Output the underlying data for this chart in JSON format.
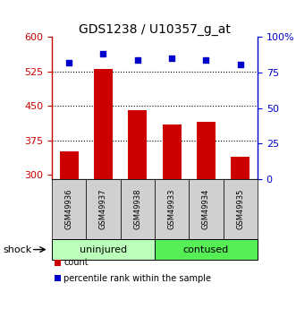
{
  "title": "GDS1238 / U10357_g_at",
  "categories": [
    "GSM49936",
    "GSM49937",
    "GSM49938",
    "GSM49933",
    "GSM49934",
    "GSM49935"
  ],
  "bar_values": [
    350,
    530,
    440,
    410,
    415,
    340
  ],
  "percentile_values": [
    82,
    88,
    84,
    85,
    84,
    81
  ],
  "bar_color": "#cc0000",
  "dot_color": "#0000cc",
  "ylim_left": [
    290,
    600
  ],
  "ylim_right": [
    0,
    100
  ],
  "yticks_left": [
    300,
    375,
    450,
    525,
    600
  ],
  "yticks_right": [
    0,
    25,
    50,
    75,
    100
  ],
  "ytick_labels_right": [
    "0",
    "25",
    "50",
    "75",
    "100%"
  ],
  "hlines": [
    375,
    450,
    525
  ],
  "group_labels": [
    "uninjured",
    "contused"
  ],
  "group_colors": [
    "#bbffbb",
    "#55ee55"
  ],
  "group_ranges": [
    [
      0,
      3
    ],
    [
      3,
      6
    ]
  ],
  "shock_label": "shock",
  "legend_items": [
    {
      "label": "count",
      "color": "#cc0000"
    },
    {
      "label": "percentile rank within the sample",
      "color": "#0000cc"
    }
  ],
  "left_axis_color": "#cc0000",
  "right_axis_color": "#0000cc",
  "background_color": "#ffffff",
  "plot_bg_color": "#ffffff",
  "title_fontsize": 10,
  "tick_fontsize": 8,
  "label_fontsize": 8,
  "gsm_fontsize": 6,
  "group_fontsize": 8,
  "legend_fontsize": 7
}
